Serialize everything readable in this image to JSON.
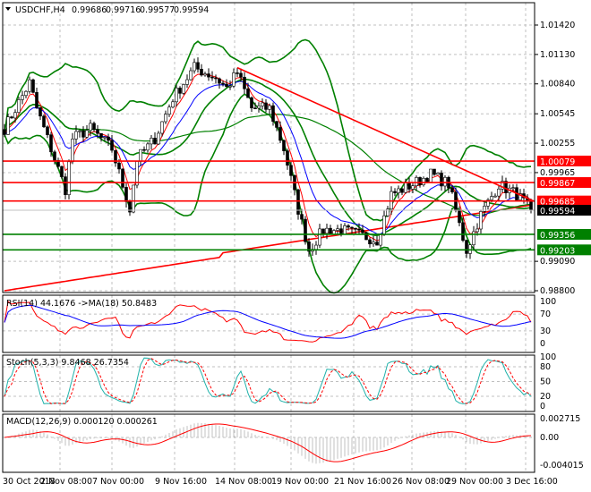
{
  "header": {
    "symbol": "USDCHF,H4",
    "open": "0.99686",
    "high": "0.99716",
    "low": "0.99577",
    "close": "0.99594"
  },
  "chart_data": [
    {
      "type": "candlestick",
      "title": "USDCHF,H4",
      "ylim": [
        0.988,
        1.0155
      ],
      "y_ticks": [
        "1.01420",
        "1.01130",
        "1.00840",
        "1.00545",
        "1.00255",
        "0.99965",
        "0.99090",
        "0.98800"
      ],
      "x_ticks": [
        "30 Oct 2018",
        "2 Nov 08:00",
        "7 Nov 00:00",
        "9 Nov 16:00",
        "14 Nov 08:00",
        "19 Nov 00:00",
        "21 Nov 16:00",
        "26 Nov 08:00",
        "29 Nov 00:00",
        "3 Dec 16:00"
      ],
      "close_keypoints_bar_price": [
        [
          0,
          1.004
        ],
        [
          7,
          1.0085
        ],
        [
          9,
          1.006
        ],
        [
          13,
          1.002
        ],
        [
          17,
          0.998
        ],
        [
          19,
          1.003
        ],
        [
          24,
          1.004
        ],
        [
          30,
          1.002
        ],
        [
          35,
          0.996
        ],
        [
          37,
          1.001
        ],
        [
          42,
          1.003
        ],
        [
          47,
          1.007
        ],
        [
          53,
          1.01
        ],
        [
          59,
          1.009
        ],
        [
          62,
          1.008
        ],
        [
          65,
          1.0095
        ],
        [
          69,
          1.006
        ],
        [
          74,
          1.006
        ],
        [
          78,
          1.002
        ],
        [
          82,
          0.996
        ],
        [
          85,
          0.992
        ],
        [
          89,
          0.994
        ],
        [
          94,
          0.994
        ],
        [
          99,
          0.9935
        ],
        [
          104,
          0.993
        ],
        [
          108,
          0.9975
        ],
        [
          114,
          0.9985
        ],
        [
          119,
          0.9995
        ],
        [
          124,
          0.9985
        ],
        [
          127,
          0.9945
        ],
        [
          129,
          0.992
        ],
        [
          133,
          0.9955
        ],
        [
          138,
          0.9985
        ],
        [
          143,
          0.9975
        ],
        [
          147,
          0.99594
        ]
      ],
      "levels": [
        {
          "label": "1.00079",
          "price": 1.00079,
          "color": "#ff0000"
        },
        {
          "label": "0.99867",
          "price": 0.99867,
          "color": "#ff0000"
        },
        {
          "label": "0.99685",
          "price": 0.99685,
          "color": "#ff0000"
        },
        {
          "label": "0.99594",
          "price": 0.99594,
          "color": "#000000"
        },
        {
          "label": "0.99356",
          "price": 0.99356,
          "color": "#008000"
        },
        {
          "label": "0.99203",
          "price": 0.99203,
          "color": "#008000"
        }
      ],
      "trendline": {
        "from": [
          65,
          1.01
        ],
        "to": [
          148,
          0.9968
        ],
        "color": "#ff0000"
      },
      "colors": {
        "bollinger": "#008000",
        "fast_ma": "#ff0000",
        "slow_ma": "#0000ff",
        "long_ma": "#ff0000",
        "mid_ma": "#008000"
      }
    },
    {
      "type": "line",
      "title": "RSI(14) 44.1676  ->MA(18) 50.8483",
      "ylim": [
        0,
        100
      ],
      "y_ticks": [
        "100",
        "70",
        "30",
        "0"
      ],
      "series": [
        {
          "name": "RSI(14)",
          "color": "#ff0000"
        },
        {
          "name": "MA(18)",
          "color": "#0000ff"
        }
      ]
    },
    {
      "type": "line",
      "title": "Stoch(5,3,3) 9.8468 26.7354",
      "ylim": [
        0,
        100
      ],
      "y_ticks": [
        "100",
        "80",
        "50",
        "20",
        "0"
      ],
      "series": [
        {
          "name": "main",
          "color": "#20b2aa"
        },
        {
          "name": "signal",
          "color": "#ff0000"
        }
      ]
    },
    {
      "type": "bar",
      "title": "MACD(12,26,9) 0.000120 0.000261",
      "ylim": [
        -0.004015,
        0.002715
      ],
      "y_ticks": [
        "0.002715",
        "0.00",
        "-0.004015"
      ],
      "series": [
        {
          "name": "MACD",
          "color": "#c0c0c0"
        },
        {
          "name": "Signal",
          "color": "#ff0000"
        }
      ]
    }
  ]
}
